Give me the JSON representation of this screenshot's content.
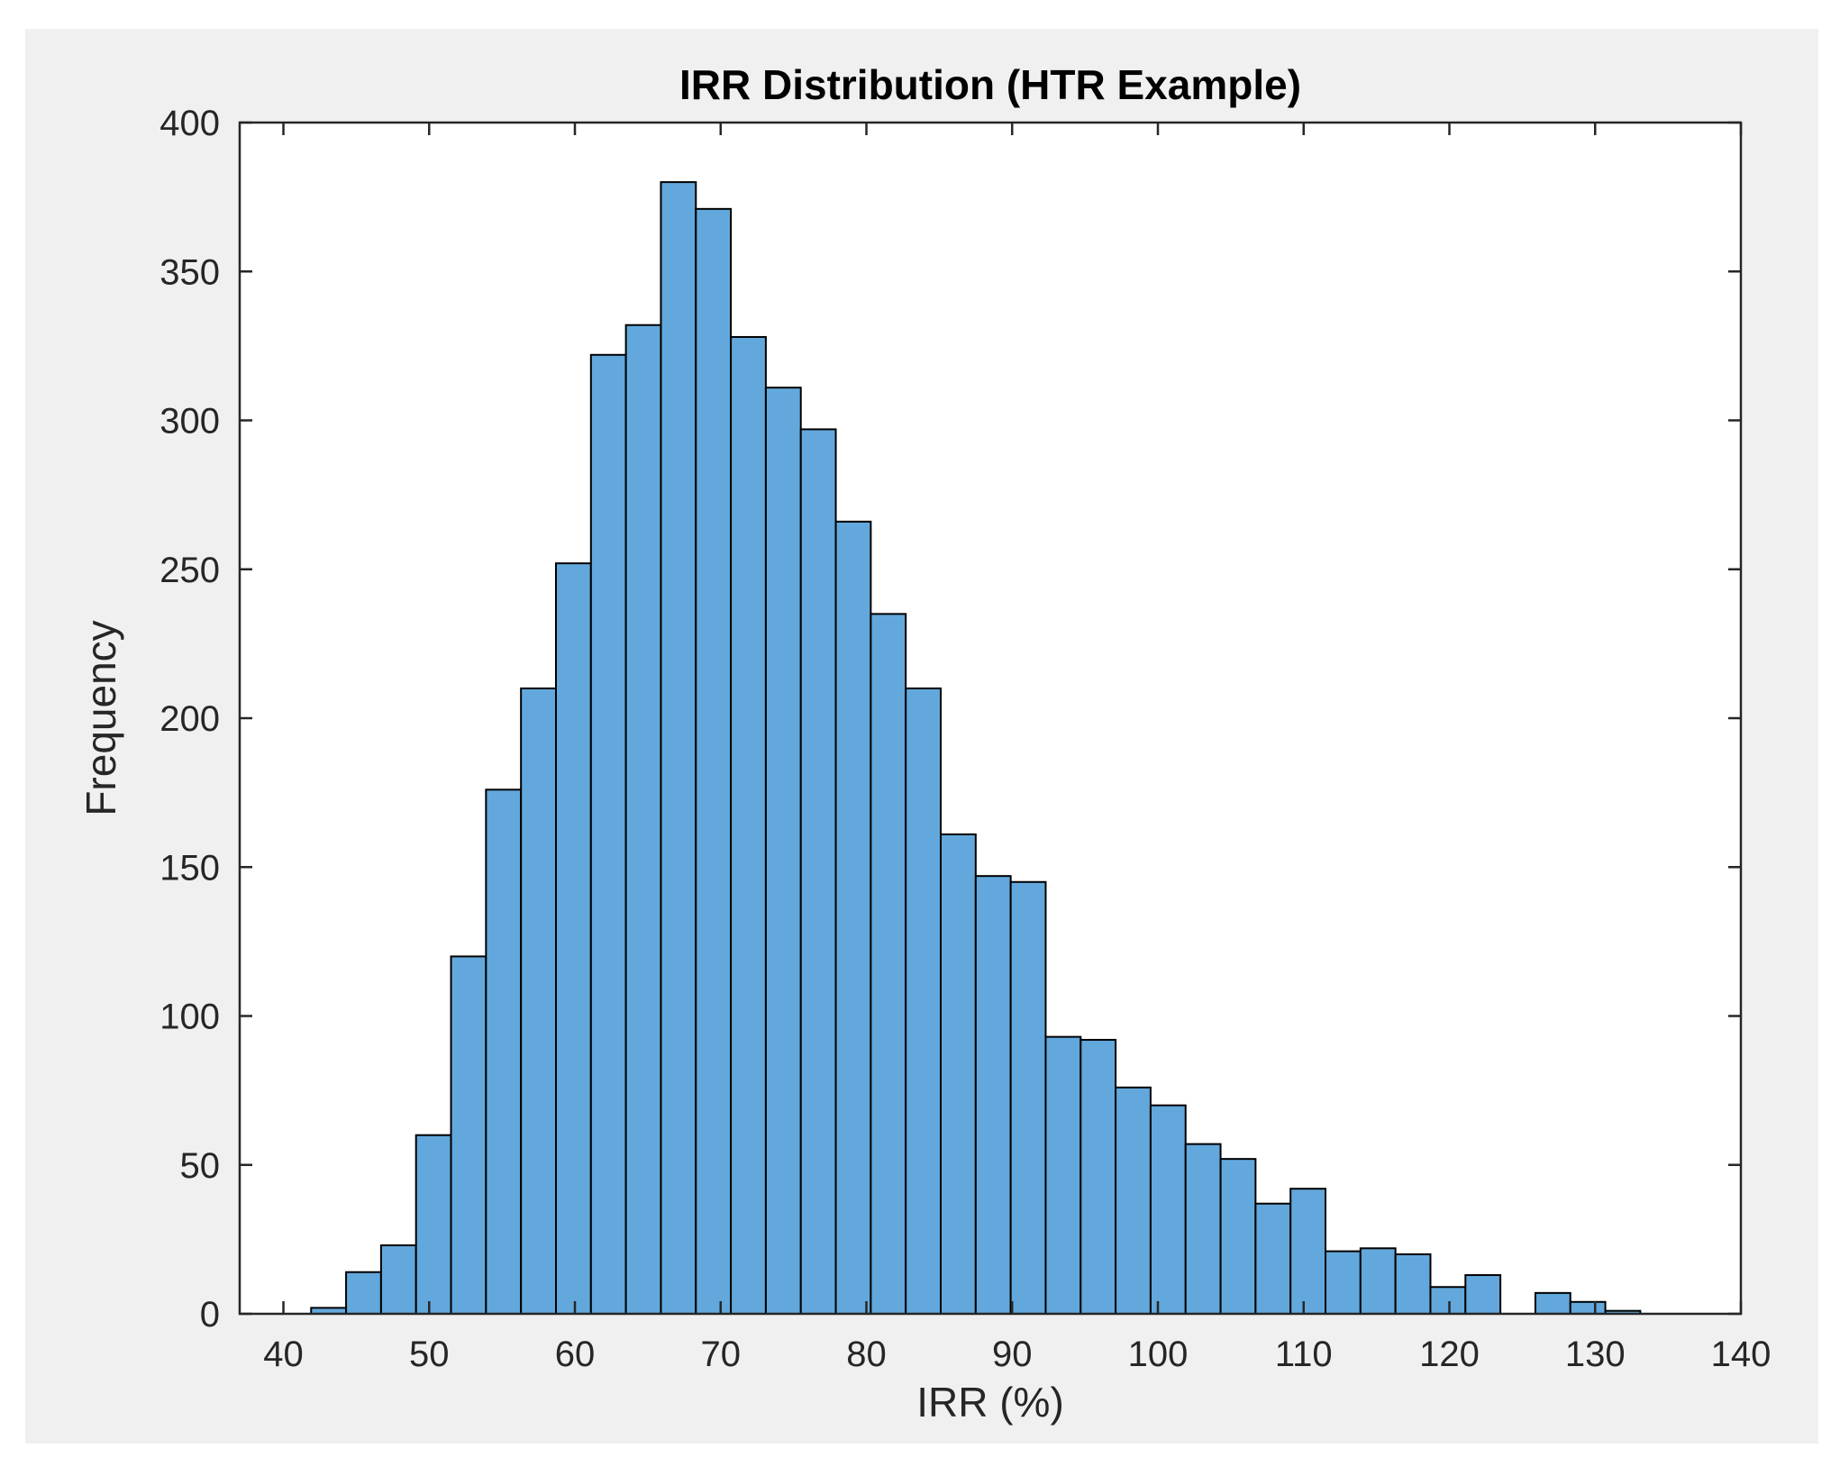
{
  "chart_data": {
    "type": "bar",
    "subtype": "histogram",
    "title": "IRR Distribution (HTR Example)",
    "xlabel": "IRR (%)",
    "ylabel": "Frequency",
    "xlim": [
      37,
      140
    ],
    "ylim": [
      0,
      400
    ],
    "xticks": [
      40,
      50,
      60,
      70,
      80,
      90,
      100,
      110,
      120,
      130,
      140
    ],
    "yticks": [
      0,
      50,
      100,
      150,
      200,
      250,
      300,
      350,
      400
    ],
    "grid": false,
    "legend": "none",
    "bar_color": "#62a8dc",
    "edge_color": "#000000",
    "bins": [
      {
        "start": 41.9,
        "end": 44.3,
        "value": 2
      },
      {
        "start": 44.3,
        "end": 46.7,
        "value": 14
      },
      {
        "start": 46.7,
        "end": 49.1,
        "value": 23
      },
      {
        "start": 49.1,
        "end": 51.5,
        "value": 60
      },
      {
        "start": 51.5,
        "end": 53.9,
        "value": 120
      },
      {
        "start": 53.9,
        "end": 56.3,
        "value": 176
      },
      {
        "start": 56.3,
        "end": 58.7,
        "value": 210
      },
      {
        "start": 58.7,
        "end": 61.1,
        "value": 252
      },
      {
        "start": 61.1,
        "end": 63.5,
        "value": 322
      },
      {
        "start": 63.5,
        "end": 65.9,
        "value": 332
      },
      {
        "start": 65.9,
        "end": 68.3,
        "value": 380
      },
      {
        "start": 68.3,
        "end": 70.7,
        "value": 371
      },
      {
        "start": 70.7,
        "end": 73.1,
        "value": 328
      },
      {
        "start": 73.1,
        "end": 75.5,
        "value": 311
      },
      {
        "start": 75.5,
        "end": 77.9,
        "value": 297
      },
      {
        "start": 77.9,
        "end": 80.3,
        "value": 266
      },
      {
        "start": 80.3,
        "end": 82.7,
        "value": 235
      },
      {
        "start": 82.7,
        "end": 85.1,
        "value": 210
      },
      {
        "start": 85.1,
        "end": 87.5,
        "value": 161
      },
      {
        "start": 87.5,
        "end": 89.9,
        "value": 147
      },
      {
        "start": 89.9,
        "end": 92.3,
        "value": 145
      },
      {
        "start": 92.3,
        "end": 94.7,
        "value": 93
      },
      {
        "start": 94.7,
        "end": 97.1,
        "value": 92
      },
      {
        "start": 97.1,
        "end": 99.5,
        "value": 76
      },
      {
        "start": 99.5,
        "end": 101.9,
        "value": 70
      },
      {
        "start": 101.9,
        "end": 104.3,
        "value": 57
      },
      {
        "start": 104.3,
        "end": 106.7,
        "value": 52
      },
      {
        "start": 106.7,
        "end": 109.1,
        "value": 37
      },
      {
        "start": 109.1,
        "end": 111.5,
        "value": 42
      },
      {
        "start": 111.5,
        "end": 113.9,
        "value": 21
      },
      {
        "start": 113.9,
        "end": 116.3,
        "value": 22
      },
      {
        "start": 116.3,
        "end": 118.7,
        "value": 20
      },
      {
        "start": 118.7,
        "end": 121.1,
        "value": 9
      },
      {
        "start": 121.1,
        "end": 123.5,
        "value": 13
      },
      {
        "start": 123.5,
        "end": 125.9,
        "value": 0
      },
      {
        "start": 125.9,
        "end": 128.3,
        "value": 7
      },
      {
        "start": 128.3,
        "end": 130.7,
        "value": 4
      },
      {
        "start": 130.7,
        "end": 133.1,
        "value": 1
      }
    ]
  }
}
